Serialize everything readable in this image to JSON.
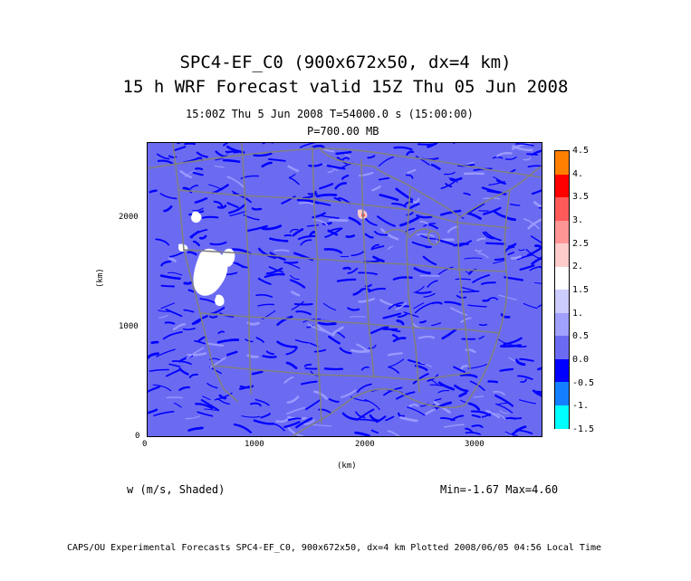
{
  "header": {
    "title_line1": "SPC4-EF_C0 (900x672x50, dx=4 km)",
    "title_line2": "15 h WRF Forecast valid 15Z Thu 05 Jun 2008",
    "time_info": "15:00Z Thu  5 Jun 2008     T=54000.0 s (15:00:00)",
    "level": "P=700.00 MB"
  },
  "map": {
    "x_axis_label": "(km)",
    "y_axis_label": "(km)",
    "x_ticks": [
      "0",
      "1000",
      "2000",
      "3000"
    ],
    "y_ticks": [
      "0",
      "1000",
      "2000"
    ],
    "x_range_km": [
      0,
      3600
    ],
    "y_range_km": [
      0,
      2700
    ],
    "field_label": "w (m/s, Shaded)",
    "stats": "Min=-1.67  Max=4.60",
    "background_color": "#6b6bf2",
    "state_line_color": "#808080"
  },
  "colorbar": {
    "labels": [
      "4.5",
      "4.",
      "3.5",
      "3.",
      "2.5",
      "2.",
      "1.5",
      "1.",
      "0.5",
      "0.0",
      "-0.5",
      "-1.",
      "-1.5"
    ],
    "colors": [
      "#ff8000",
      "#ff0000",
      "#ff5a5a",
      "#ff9696",
      "#ffcccc",
      "#ffffff",
      "#ccccff",
      "#a0a0ff",
      "#6b6bf2",
      "#0000ff",
      "#1480ff",
      "#00ffff"
    ]
  },
  "footer": {
    "credit": "CAPS/OU Experimental Forecasts  SPC4-EF_C0, 900x672x50, dx=4 km  Plotted 2008/06/05 04:56 Local Time"
  }
}
